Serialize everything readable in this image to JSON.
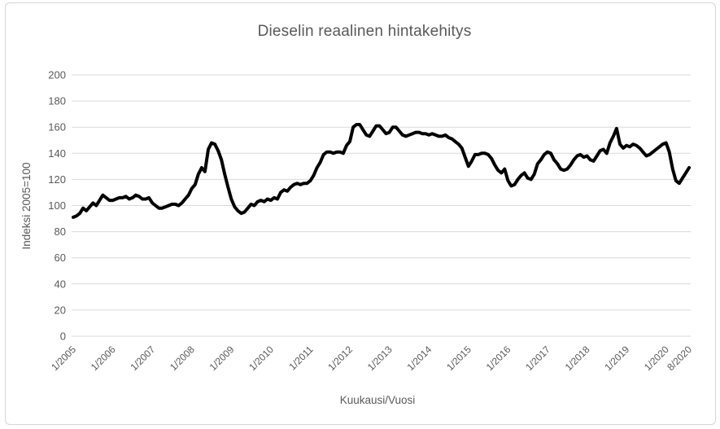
{
  "window": {
    "background": "#ffffff",
    "border_color": "#d6d6d6"
  },
  "chart_data": {
    "type": "line",
    "title": "Dieselin reaalinen hintakehitys",
    "xlabel": "Kuukausi/Vuosi",
    "ylabel": "Indeksi 2005=100",
    "ylim": [
      0,
      200
    ],
    "y_ticks": [
      0,
      20,
      40,
      60,
      80,
      100,
      120,
      140,
      160,
      180,
      200
    ],
    "grid": true,
    "legend": false,
    "line_color": "#000000",
    "line_width": 4,
    "text_color": "#595959",
    "grid_color": "#d9d9d9",
    "frequency": "monthly",
    "period_start_label": "1/2005",
    "period_end_label": "8/2020",
    "x_ticks": [
      {
        "label": "1/2005",
        "month_index": 0
      },
      {
        "label": "1/2006",
        "month_index": 12
      },
      {
        "label": "1/2007",
        "month_index": 24
      },
      {
        "label": "1/2008",
        "month_index": 36
      },
      {
        "label": "1/2009",
        "month_index": 48
      },
      {
        "label": "1/2010",
        "month_index": 60
      },
      {
        "label": "1/2011",
        "month_index": 72
      },
      {
        "label": "1/2012",
        "month_index": 84
      },
      {
        "label": "1/2013",
        "month_index": 96
      },
      {
        "label": "1/2014",
        "month_index": 108
      },
      {
        "label": "1/2015",
        "month_index": 120
      },
      {
        "label": "1/2016",
        "month_index": 132
      },
      {
        "label": "1/2017",
        "month_index": 144
      },
      {
        "label": "1/2018",
        "month_index": 156
      },
      {
        "label": "1/2019",
        "month_index": 168
      },
      {
        "label": "1/2020",
        "month_index": 180
      },
      {
        "label": "8/2020",
        "month_index": 187
      }
    ],
    "values": [
      91,
      92,
      94,
      98,
      96,
      99,
      102,
      100,
      104,
      108,
      106,
      104,
      104,
      105,
      106,
      106,
      107,
      105,
      106,
      108,
      107,
      105,
      105,
      106,
      102,
      100,
      98,
      98,
      99,
      100,
      101,
      101,
      100,
      102,
      105,
      108,
      113,
      116,
      124,
      129,
      126,
      143,
      148,
      147,
      142,
      135,
      124,
      114,
      105,
      99,
      96,
      94,
      95,
      98,
      101,
      100,
      103,
      104,
      103,
      105,
      104,
      106,
      105,
      110,
      112,
      111,
      114,
      116,
      117,
      116,
      117,
      117,
      119,
      123,
      129,
      133,
      139,
      141,
      141,
      140,
      141,
      141,
      140,
      146,
      149,
      160,
      162,
      162,
      158,
      154,
      153,
      157,
      161,
      161,
      158,
      155,
      156,
      160,
      160,
      157,
      154,
      153,
      154,
      155,
      156,
      156,
      155,
      155,
      154,
      155,
      154,
      153,
      153,
      154,
      152,
      151,
      149,
      147,
      144,
      137,
      130,
      134,
      139,
      139,
      140,
      140,
      139,
      136,
      131,
      127,
      125,
      128,
      119,
      115,
      116,
      120,
      123,
      125,
      121,
      120,
      124,
      132,
      135,
      139,
      141,
      140,
      135,
      132,
      128,
      127,
      128,
      131,
      135,
      138,
      139,
      137,
      138,
      135,
      134,
      138,
      142,
      143,
      140,
      148,
      153,
      159,
      147,
      144,
      146,
      145,
      147,
      146,
      144,
      141,
      138,
      139,
      141,
      143,
      145,
      147,
      148,
      141,
      128,
      119,
      117,
      121,
      125,
      129
    ]
  }
}
